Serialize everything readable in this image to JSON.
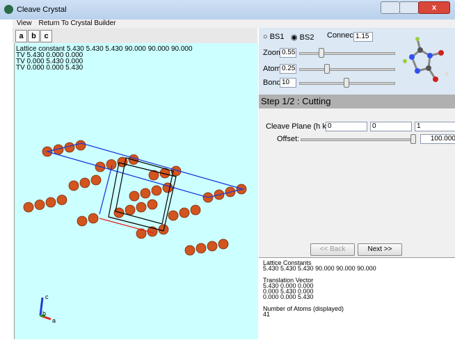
{
  "window": {
    "title": "Cleave Crystal"
  },
  "menu": [
    "View",
    "Return To Crystal Builder"
  ],
  "toolbar": [
    "a",
    "b",
    "c"
  ],
  "viewer": {
    "info": [
      "Lattice constant 5.430 5.430 5.430 90.000 90.000 90.000",
      "TV 5.430 0.000 0.000",
      "TV 0.000 5.430 0.000",
      "TV 0.000 0.000 5.430"
    ],
    "axes": [
      "c",
      "b",
      "a"
    ]
  },
  "display": {
    "radios": [
      "BS1",
      "BS2"
    ],
    "connect_label": "Connect",
    "connect": "1.15",
    "zoom_label": "Zoom",
    "zoom": "0.55",
    "atom_label": "Atom",
    "atom": "0.25",
    "bond_label": "Bond",
    "bond": "10"
  },
  "step": {
    "title": "Step 1/2 : Cutting",
    "plane_label": "Cleave Plane (h k l)",
    "h": "0",
    "k": "0",
    "l": "1",
    "offset_label": "Offset:",
    "offset": "100.000"
  },
  "buttons": [
    "<< Back",
    "Next >>"
  ],
  "output": [
    [
      "Lattice Constants",
      "5.430 5.430 5.430 90.000 90.000 90.000"
    ],
    [
      "Translation Vector",
      "5.430 0.000 0.000",
      "0.000 5.430 0.000",
      "0.000 0.000 5.430"
    ],
    [
      "Number of Atoms (displayed)",
      "41"
    ]
  ]
}
